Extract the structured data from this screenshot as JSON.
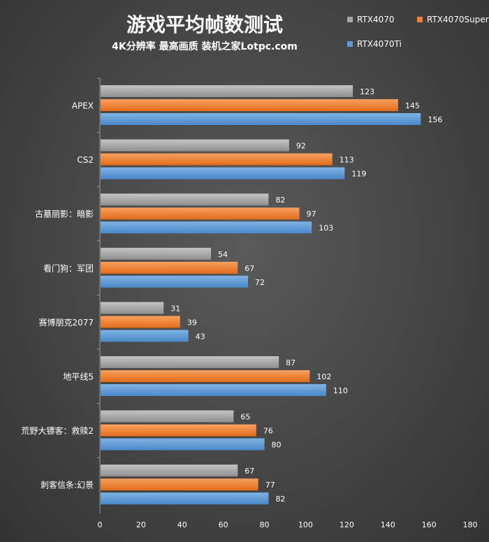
{
  "chart_data": {
    "type": "bar",
    "orientation": "horizontal",
    "title": "游戏平均帧数测试",
    "subtitle": "4K分辨率 最高画质 装机之家Lotpc.com",
    "categories": [
      "APEX",
      "CS2",
      "古墓丽影：暗影",
      "看门狗：军团",
      "赛博朋克2077",
      "地平线5",
      "荒野大镖客：救赎2",
      "刺客信条:幻景"
    ],
    "series": [
      {
        "name": "RTX4070",
        "color": "#a6a6a6",
        "values": [
          123,
          92,
          82,
          54,
          31,
          87,
          65,
          67
        ]
      },
      {
        "name": "RTX4070Super",
        "color": "#f07f2f",
        "values": [
          145,
          113,
          97,
          67,
          39,
          102,
          76,
          77
        ]
      },
      {
        "name": "RTX4070Ti",
        "color": "#5b9bd5",
        "values": [
          156,
          119,
          103,
          72,
          43,
          110,
          80,
          82
        ]
      }
    ],
    "xlim": [
      0,
      180
    ],
    "xticks": [
      0,
      20,
      40,
      60,
      80,
      100,
      120,
      140,
      160,
      180
    ],
    "legend_position": "top-right",
    "grid": false
  }
}
